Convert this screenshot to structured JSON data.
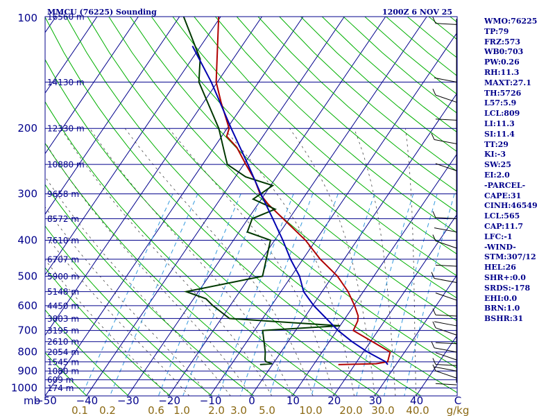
{
  "chart_data": {
    "type": "line",
    "title": "MMCU (76225) Sounding",
    "datetime": "1200Z  6 NOV 25",
    "pressure_axis": {
      "ticks": [
        "100",
        "200",
        "300",
        "400",
        "500",
        "600",
        "700",
        "800",
        "900",
        "1000"
      ],
      "unit": "mb",
      "range": [
        100,
        1050
      ],
      "scale": "log"
    },
    "temperature_axis": {
      "ticks": [
        "−50",
        "−40",
        "−30",
        "−20",
        "−10",
        "0",
        "10",
        "20",
        "30",
        "40",
        "C"
      ],
      "range": [
        -50,
        50
      ],
      "skewed": true
    },
    "mixing_ratio_labels": [
      "0.1",
      "0.2",
      "0.6",
      "1.0",
      "2.0",
      "3.0",
      "5.0",
      "10.0",
      "20.0",
      "30.0",
      "40.0",
      "g/kg"
    ],
    "height_labels": [
      {
        "p": 100,
        "label": "16560 m"
      },
      {
        "p": 150,
        "label": "14130 m"
      },
      {
        "p": 200,
        "label": "12330 m"
      },
      {
        "p": 250,
        "label": "10880 m"
      },
      {
        "p": 300,
        "label": "9658 m"
      },
      {
        "p": 350,
        "label": "8572 m"
      },
      {
        "p": 400,
        "label": "7610 m"
      },
      {
        "p": 450,
        "label": "6707 m"
      },
      {
        "p": 500,
        "label": "5900 m"
      },
      {
        "p": 550,
        "label": "5148 m"
      },
      {
        "p": 600,
        "label": "4450 m"
      },
      {
        "p": 650,
        "label": "3803 m"
      },
      {
        "p": 700,
        "label": "3195 m"
      },
      {
        "p": 750,
        "label": "2610 m"
      },
      {
        "p": 800,
        "label": "2054 m"
      },
      {
        "p": 850,
        "label": "1545 m"
      },
      {
        "p": 900,
        "label": "1080 m"
      },
      {
        "p": 950,
        "label": "609 m"
      },
      {
        "p": 1000,
        "label": "174 m"
      }
    ],
    "series": [
      {
        "color": "#b00000",
        "points": [
          {
            "p": 865,
            "t": 16.0
          },
          {
            "p": 860,
            "t": 25.0
          },
          {
            "p": 850,
            "t": 27.5
          },
          {
            "p": 800,
            "t": 26.5
          },
          {
            "p": 700,
            "t": 14.0
          },
          {
            "p": 660,
            "t": 13.5
          },
          {
            "p": 640,
            "t": 12.8
          },
          {
            "p": 600,
            "t": 10.2
          },
          {
            "p": 550,
            "t": 6.3
          },
          {
            "p": 500,
            "t": 1.2
          },
          {
            "p": 450,
            "t": -5.8
          },
          {
            "p": 400,
            "t": -12.5
          },
          {
            "p": 350,
            "t": -21.5
          },
          {
            "p": 320,
            "t": -27.5
          },
          {
            "p": 300,
            "t": -31.2
          },
          {
            "p": 275,
            "t": -34.8
          },
          {
            "p": 250,
            "t": -39.5
          },
          {
            "p": 225,
            "t": -44.5
          },
          {
            "p": 210,
            "t": -48.8
          },
          {
            "p": 200,
            "t": -49.5
          },
          {
            "p": 170,
            "t": -55.8
          },
          {
            "p": 150,
            "t": -60.3
          },
          {
            "p": 100,
            "t": -70.5
          }
        ]
      },
      {
        "color": "#003800",
        "points": [
          {
            "p": 865,
            "t": -3.0
          },
          {
            "p": 860,
            "t": -0.2
          },
          {
            "p": 850,
            "t": -2.0
          },
          {
            "p": 840,
            "t": -2.6
          },
          {
            "p": 800,
            "t": -3.8
          },
          {
            "p": 700,
            "t": -8.0
          },
          {
            "p": 680,
            "t": 10.0
          },
          {
            "p": 650,
            "t": -18.0
          },
          {
            "p": 600,
            "t": -24.2
          },
          {
            "p": 575,
            "t": -27.0
          },
          {
            "p": 550,
            "t": -33.0
          },
          {
            "p": 500,
            "t": -17.0
          },
          {
            "p": 400,
            "t": -21.0
          },
          {
            "p": 380,
            "t": -28.0
          },
          {
            "p": 350,
            "t": -29.0
          },
          {
            "p": 330,
            "t": -25.0
          },
          {
            "p": 310,
            "t": -32.0
          },
          {
            "p": 285,
            "t": -29.5
          },
          {
            "p": 270,
            "t": -37.5
          },
          {
            "p": 250,
            "t": -44.0
          },
          {
            "p": 230,
            "t": -47.0
          },
          {
            "p": 200,
            "t": -52.0
          },
          {
            "p": 150,
            "t": -64.5
          },
          {
            "p": 130,
            "t": -68.0
          },
          {
            "p": 100,
            "t": -79.0
          }
        ]
      },
      {
        "color": "#0000b0",
        "points": [
          {
            "p": 865,
            "t": 28.0
          },
          {
            "p": 850,
            "t": 27.0
          },
          {
            "p": 800,
            "t": 21.0
          },
          {
            "p": 750,
            "t": 15.5
          },
          {
            "p": 700,
            "t": 10.3
          },
          {
            "p": 600,
            "t": 0.3
          },
          {
            "p": 550,
            "t": -4.5
          },
          {
            "p": 500,
            "t": -8.0
          },
          {
            "p": 450,
            "t": -13.0
          },
          {
            "p": 400,
            "t": -18.0
          },
          {
            "p": 350,
            "t": -24.0
          },
          {
            "p": 300,
            "t": -31.0
          },
          {
            "p": 250,
            "t": -39.0
          },
          {
            "p": 200,
            "t": -49.0
          },
          {
            "p": 150,
            "t": -61.5
          },
          {
            "p": 120,
            "t": -72.0
          }
        ]
      }
    ],
    "grid": true
  },
  "indices": [
    "WMO:76225",
    "TP:79",
    "FRZ:573",
    "WB0:703",
    "PW:0.26",
    "RH:11.3",
    "MAXT:27.1",
    "TH:5726",
    "L57:5.9",
    "LCL:809",
    "LI:11.3",
    "SI:11.4",
    "TT:29",
    "KI:-3",
    "SW:25",
    "EI:2.0",
    "-PARCEL-",
    "CAPE:31",
    "CINH:46549",
    "LCL:565",
    "CAP:11.7",
    "LFC:-1",
    "-WIND-",
    "STM:307/12",
    "HEL:26",
    "SHR+:0.0",
    "SRDS:-178",
    "EHI:0.0",
    "BRN:1.0",
    "BSHR:31"
  ],
  "colors": {
    "frame": "#00008b",
    "isobar": "#00008b",
    "isotherm": "#00008b",
    "dry_adiabat": "#00b000",
    "moist_adiabat": "#444444",
    "mixing_ratio": "#3399dd",
    "mixing_ratio_label": "#8b6914",
    "temperature": "#b00000",
    "dewpoint": "#003800",
    "parcel": "#0000b0"
  }
}
